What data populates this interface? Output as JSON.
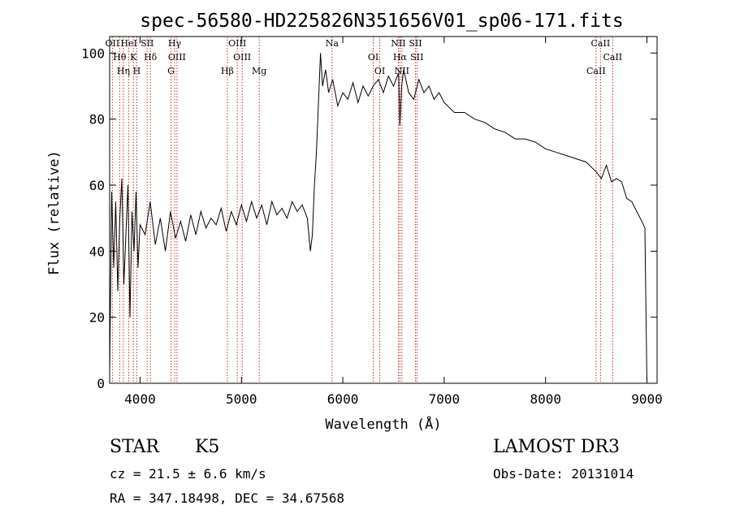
{
  "chart_data": {
    "type": "line",
    "title": "spec-56580-HD225826N351656V01_sp06-171.fits",
    "xlabel": "Wavelength (Å)",
    "ylabel": "Flux (relative)",
    "xlim": [
      3700,
      9100
    ],
    "ylim": [
      0,
      105
    ],
    "x_ticks": [
      4000,
      5000,
      6000,
      7000,
      8000,
      9000
    ],
    "y_ticks": [
      0,
      20,
      40,
      60,
      80,
      100
    ],
    "grid": false,
    "series": [
      {
        "x": [
          3700,
          3720,
          3740,
          3760,
          3780,
          3800,
          3820,
          3840,
          3860,
          3880,
          3900,
          3920,
          3940,
          3960,
          3980,
          4000,
          4050,
          4100,
          4150,
          4200,
          4250,
          4300,
          4350,
          4400,
          4450,
          4500,
          4550,
          4600,
          4650,
          4700,
          4750,
          4800,
          4850,
          4900,
          4950,
          5000,
          5050,
          5100,
          5150,
          5200,
          5250,
          5300,
          5350,
          5400,
          5450,
          5500,
          5550,
          5600,
          5650,
          5680,
          5700,
          5720,
          5740,
          5760,
          5780,
          5800,
          5830,
          5860,
          5900,
          5950,
          6000,
          6050,
          6100,
          6150,
          6200,
          6250,
          6300,
          6350,
          6400,
          6450,
          6500,
          6550,
          6563,
          6580,
          6600,
          6650,
          6700,
          6750,
          6800,
          6850,
          6900,
          6950,
          7000,
          7100,
          7200,
          7300,
          7400,
          7500,
          7600,
          7700,
          7800,
          7900,
          8000,
          8100,
          8200,
          8300,
          8400,
          8500,
          8550,
          8600,
          8650,
          8700,
          8750,
          8800,
          8850,
          8900,
          8950,
          8980,
          9000
        ],
        "y": [
          3,
          58,
          35,
          55,
          28,
          50,
          62,
          30,
          45,
          60,
          20,
          52,
          40,
          58,
          35,
          48,
          45,
          55,
          42,
          50,
          40,
          52,
          44,
          49,
          43,
          51,
          45,
          52,
          47,
          50,
          48,
          53,
          46,
          52,
          48,
          54,
          49,
          55,
          50,
          54,
          48,
          55,
          51,
          53,
          50,
          55,
          52,
          54,
          50,
          40,
          45,
          60,
          70,
          85,
          100,
          90,
          95,
          88,
          92,
          84,
          88,
          86,
          91,
          85,
          90,
          87,
          90,
          92,
          88,
          93,
          90,
          94,
          78,
          90,
          95,
          88,
          86,
          92,
          88,
          90,
          86,
          88,
          85,
          82,
          82,
          80,
          79,
          77,
          76,
          74,
          74,
          73,
          71,
          70,
          69,
          68,
          67,
          64,
          62,
          66,
          61,
          62,
          61,
          56,
          55,
          52,
          49,
          47,
          0
        ]
      }
    ],
    "lines": [
      {
        "label": "OII",
        "x": 3727
      },
      {
        "label": "Hθ",
        "x": 3798
      },
      {
        "label": "Hη",
        "x": 3835
      },
      {
        "label": "HeI",
        "x": 3889
      },
      {
        "label": "K",
        "x": 3934
      },
      {
        "label": "H",
        "x": 3968
      },
      {
        "label": "SII",
        "x": 4070
      },
      {
        "label": "Hδ",
        "x": 4102
      },
      {
        "label": "G",
        "x": 4305
      },
      {
        "label": "Hγ",
        "x": 4341
      },
      {
        "label": "OIII",
        "x": 4364
      },
      {
        "label": "Hβ",
        "x": 4861
      },
      {
        "label": "OIII",
        "x": 4959
      },
      {
        "label": "OIII",
        "x": 5007
      },
      {
        "label": "Mg",
        "x": 5175
      },
      {
        "label": "Na",
        "x": 5894
      },
      {
        "label": "OI",
        "x": 6300
      },
      {
        "label": "OI",
        "x": 6364
      },
      {
        "label": "NII",
        "x": 6548
      },
      {
        "label": "Hα",
        "x": 6563
      },
      {
        "label": "NII",
        "x": 6583
      },
      {
        "label": "SII",
        "x": 6716
      },
      {
        "label": "SII",
        "x": 6731
      },
      {
        "label": "CaII",
        "x": 8498
      },
      {
        "label": "CaII",
        "x": 8542
      },
      {
        "label": "CaII",
        "x": 8662
      }
    ]
  },
  "info": {
    "object_class": "STAR",
    "subclass": "K5",
    "survey": "LAMOST DR3",
    "cz": "cz = 21.5 ± 6.6 km/s",
    "obs_date": "Obs-Date: 20131014",
    "radec": "RA = 347.18498, DEC =  34.67568"
  }
}
